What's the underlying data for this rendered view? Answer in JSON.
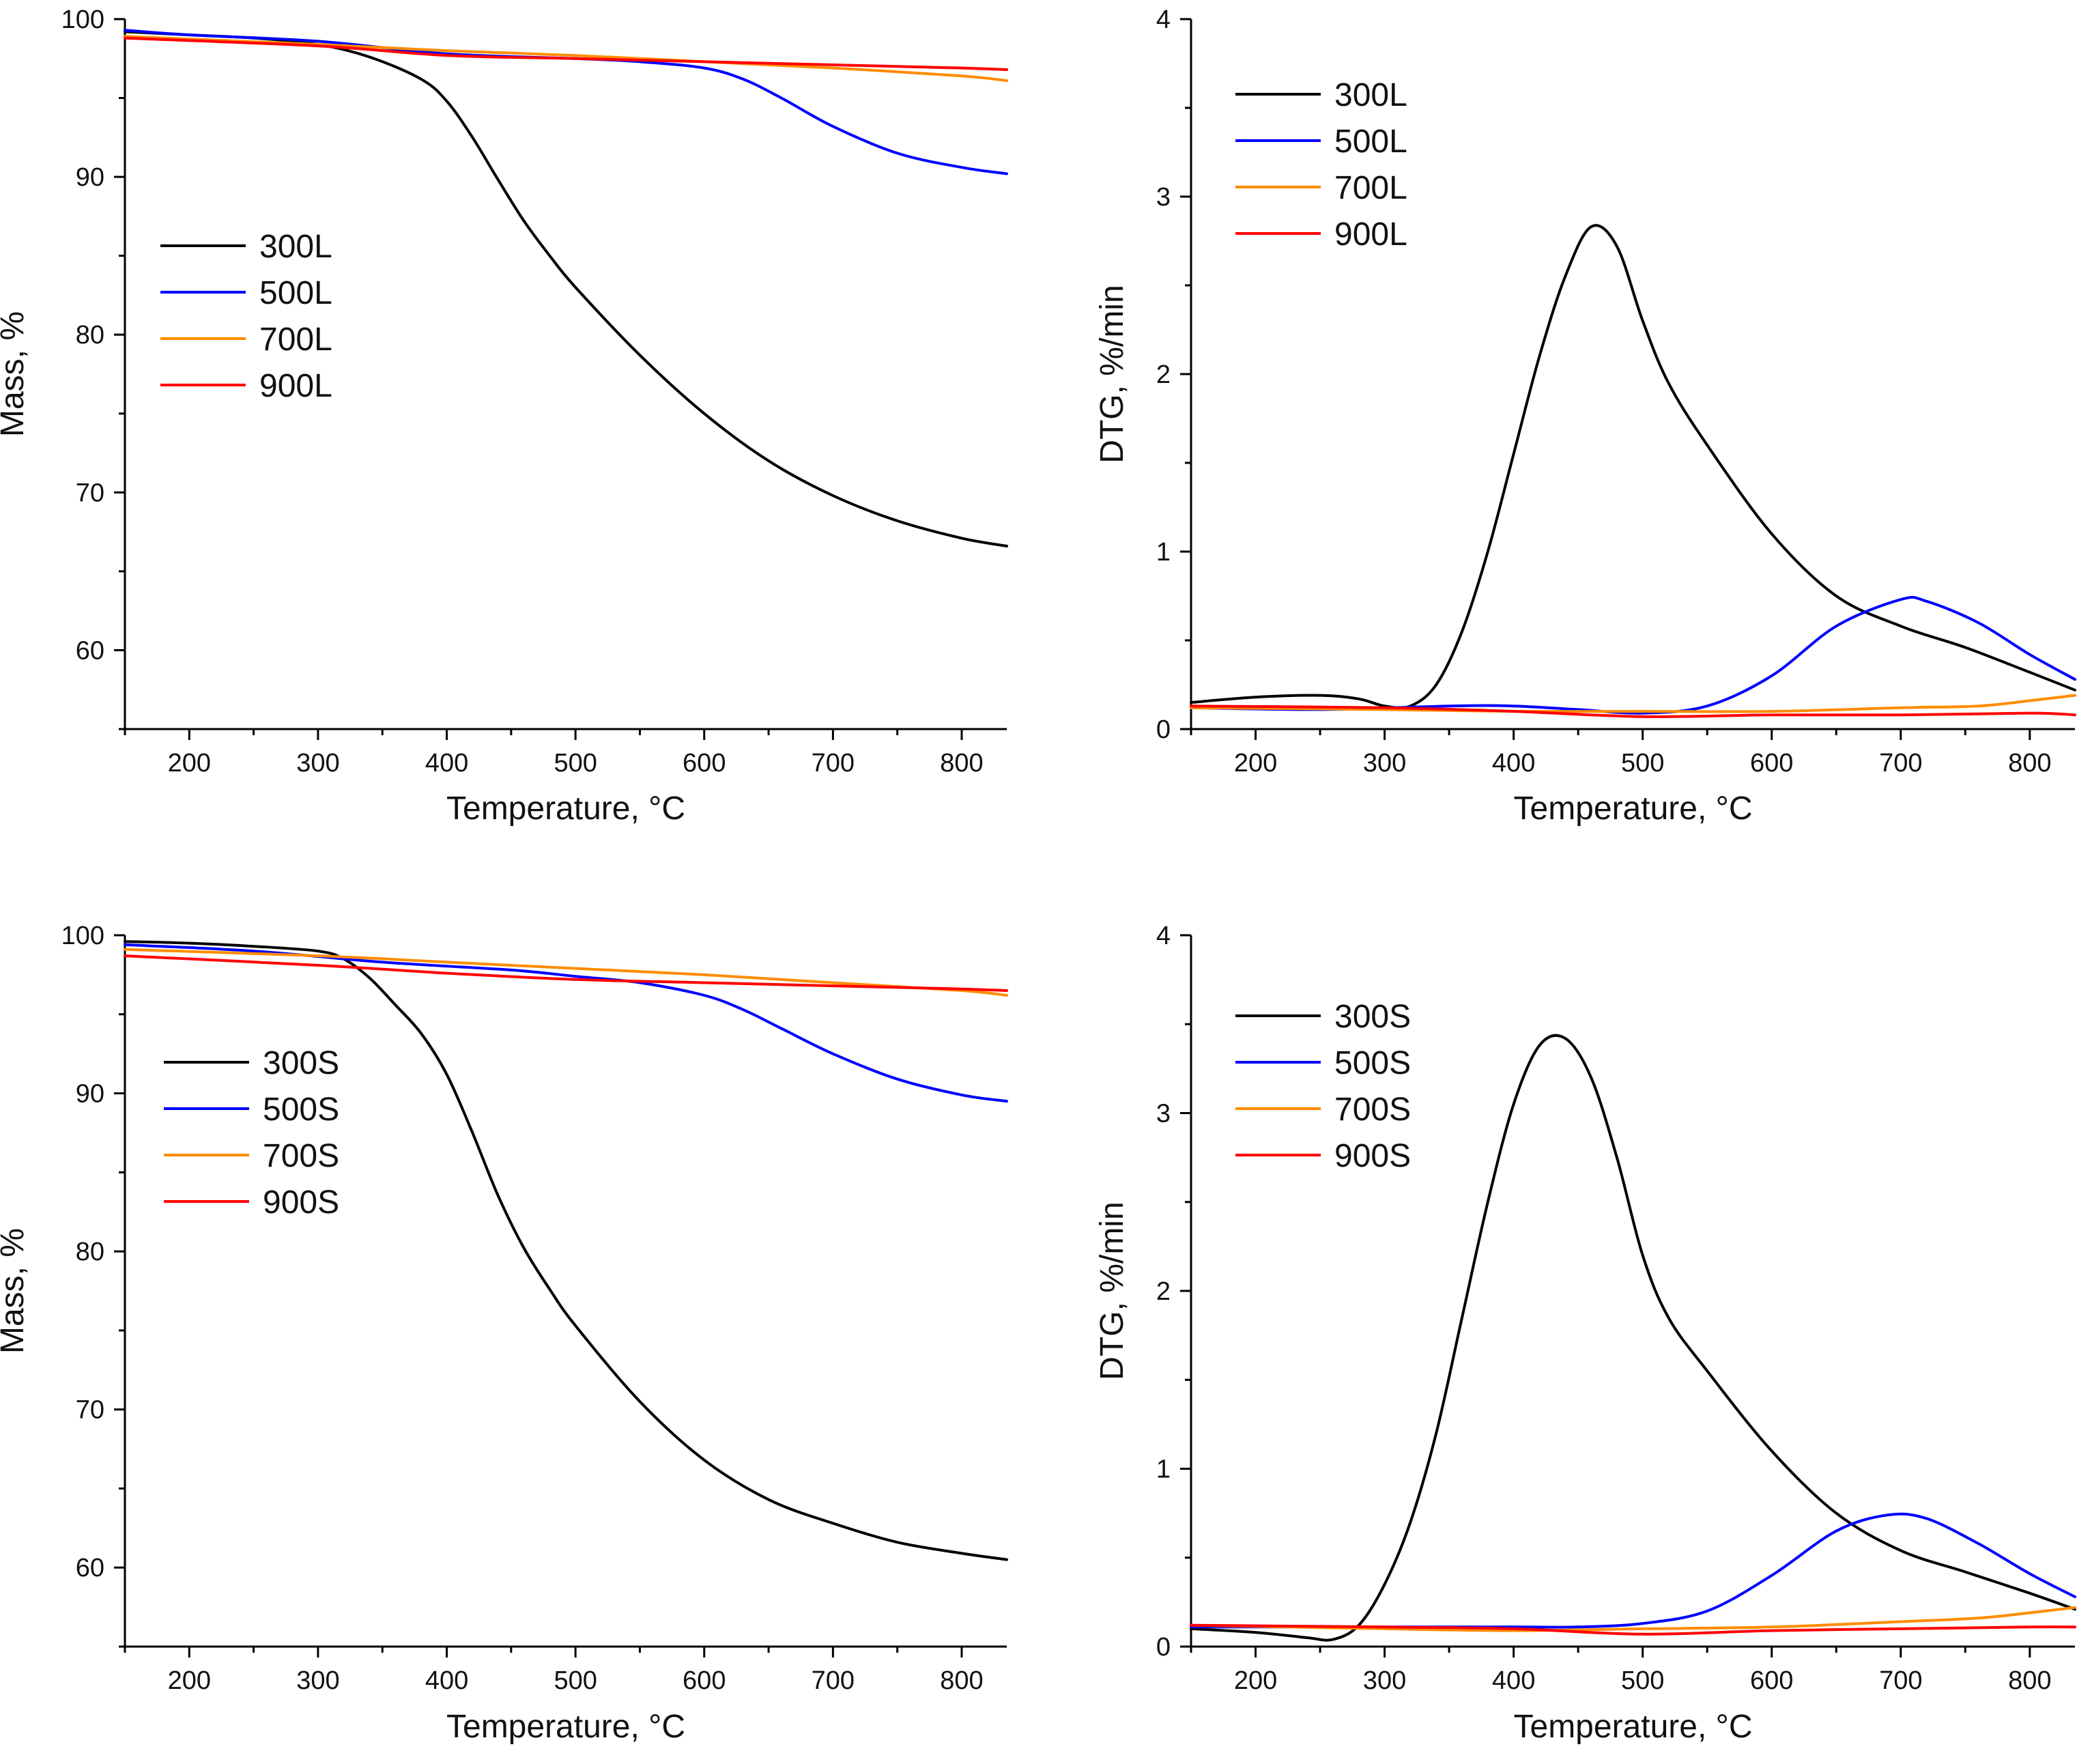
{
  "chart_data": [
    {
      "type": "line",
      "id": "tg-L",
      "xlabel": "Temperature, °C",
      "ylabel": "Mass, %",
      "xlim": [
        150,
        835
      ],
      "ylim": [
        55,
        100
      ],
      "xticks": [
        200,
        300,
        400,
        500,
        600,
        700,
        800
      ],
      "yticks": [
        60,
        70,
        80,
        90,
        100
      ],
      "legend": "upper-left",
      "series": [
        {
          "name": "300L",
          "color": "#000000",
          "x": [
            150,
            200,
            250,
            300,
            340,
            380,
            400,
            420,
            440,
            460,
            480,
            500,
            550,
            600,
            650,
            700,
            750,
            800,
            835
          ],
          "y": [
            99.2,
            99.0,
            98.8,
            98.4,
            97.6,
            96.2,
            94.8,
            92.5,
            89.8,
            87.2,
            85.0,
            83.0,
            78.7,
            75.0,
            72.0,
            69.8,
            68.2,
            67.1,
            66.6
          ]
        },
        {
          "name": "500L",
          "color": "#0000FF",
          "x": [
            150,
            200,
            300,
            400,
            500,
            550,
            600,
            630,
            660,
            700,
            750,
            800,
            835
          ],
          "y": [
            99.3,
            99.0,
            98.6,
            97.8,
            97.5,
            97.3,
            96.9,
            96.2,
            95.0,
            93.2,
            91.5,
            90.6,
            90.2
          ]
        },
        {
          "name": "700L",
          "color": "#FF8C00",
          "x": [
            150,
            300,
            400,
            500,
            600,
            700,
            800,
            835
          ],
          "y": [
            98.9,
            98.4,
            98.0,
            97.7,
            97.3,
            96.9,
            96.4,
            96.1
          ]
        },
        {
          "name": "900L",
          "color": "#FF0000",
          "x": [
            150,
            300,
            400,
            500,
            600,
            700,
            800,
            835
          ],
          "y": [
            98.8,
            98.3,
            97.7,
            97.5,
            97.3,
            97.1,
            96.9,
            96.8
          ]
        }
      ]
    },
    {
      "type": "line",
      "id": "dtg-L",
      "xlabel": "Temperature, °C",
      "ylabel": "DTG, %/min",
      "xlim": [
        150,
        835
      ],
      "ylim": [
        0,
        4
      ],
      "xticks": [
        200,
        300,
        400,
        500,
        600,
        700,
        800
      ],
      "yticks": [
        0,
        1,
        2,
        3,
        4
      ],
      "legend": "upper-left",
      "series": [
        {
          "name": "300L",
          "color": "#000000",
          "x": [
            150,
            200,
            250,
            280,
            300,
            320,
            340,
            360,
            380,
            400,
            420,
            440,
            460,
            480,
            500,
            520,
            550,
            600,
            650,
            700,
            750,
            800,
            835
          ],
          "y": [
            0.15,
            0.18,
            0.19,
            0.17,
            0.13,
            0.13,
            0.25,
            0.55,
            1.0,
            1.55,
            2.1,
            2.55,
            2.83,
            2.72,
            2.3,
            1.95,
            1.6,
            1.1,
            0.75,
            0.58,
            0.46,
            0.32,
            0.22
          ]
        },
        {
          "name": "500L",
          "color": "#0000FF",
          "x": [
            150,
            250,
            350,
            400,
            450,
            500,
            550,
            600,
            650,
            700,
            720,
            760,
            800,
            835
          ],
          "y": [
            0.12,
            0.11,
            0.13,
            0.13,
            0.11,
            0.09,
            0.13,
            0.3,
            0.58,
            0.73,
            0.72,
            0.6,
            0.42,
            0.28
          ]
        },
        {
          "name": "700L",
          "color": "#FF8C00",
          "x": [
            150,
            300,
            400,
            500,
            600,
            700,
            760,
            800,
            835
          ],
          "y": [
            0.12,
            0.11,
            0.1,
            0.1,
            0.1,
            0.12,
            0.13,
            0.16,
            0.19
          ]
        },
        {
          "name": "900L",
          "color": "#FF0000",
          "x": [
            150,
            300,
            400,
            500,
            600,
            700,
            800,
            835
          ],
          "y": [
            0.13,
            0.12,
            0.1,
            0.07,
            0.08,
            0.08,
            0.09,
            0.08
          ]
        }
      ]
    },
    {
      "type": "line",
      "id": "tg-S",
      "xlabel": "Temperature, °C",
      "ylabel": "Mass, %",
      "xlim": [
        150,
        835
      ],
      "ylim": [
        55,
        100
      ],
      "xticks": [
        200,
        300,
        400,
        500,
        600,
        700,
        800
      ],
      "yticks": [
        60,
        70,
        80,
        90,
        100
      ],
      "legend": "upper-left",
      "series": [
        {
          "name": "300S",
          "color": "#000000",
          "x": [
            150,
            200,
            250,
            300,
            320,
            340,
            360,
            380,
            400,
            420,
            440,
            460,
            480,
            500,
            550,
            600,
            650,
            700,
            750,
            800,
            835
          ],
          "y": [
            99.6,
            99.5,
            99.3,
            99.0,
            98.5,
            97.3,
            95.6,
            93.8,
            91.2,
            87.5,
            83.5,
            80.2,
            77.6,
            75.3,
            70.5,
            66.8,
            64.3,
            62.8,
            61.6,
            60.9,
            60.5
          ]
        },
        {
          "name": "500S",
          "color": "#0000FF",
          "x": [
            150,
            250,
            350,
            450,
            500,
            550,
            600,
            630,
            660,
            700,
            750,
            800,
            835
          ],
          "y": [
            99.4,
            99.0,
            98.3,
            97.8,
            97.4,
            97.0,
            96.2,
            95.3,
            94.1,
            92.5,
            90.9,
            89.9,
            89.5
          ]
        },
        {
          "name": "700S",
          "color": "#FF8C00",
          "x": [
            150,
            300,
            400,
            500,
            600,
            700,
            800,
            835
          ],
          "y": [
            99.1,
            98.7,
            98.3,
            97.9,
            97.5,
            97.0,
            96.5,
            96.2
          ]
        },
        {
          "name": "900S",
          "color": "#FF0000",
          "x": [
            150,
            300,
            400,
            500,
            600,
            700,
            800,
            835
          ],
          "y": [
            98.7,
            98.1,
            97.6,
            97.2,
            97.0,
            96.8,
            96.6,
            96.5
          ]
        }
      ]
    },
    {
      "type": "line",
      "id": "dtg-S",
      "xlabel": "Temperature, °C",
      "ylabel": "DTG, %/min",
      "xlim": [
        150,
        835
      ],
      "ylim": [
        0,
        4
      ],
      "xticks": [
        200,
        300,
        400,
        500,
        600,
        700,
        800
      ],
      "yticks": [
        0,
        1,
        2,
        3,
        4
      ],
      "legend": "upper-left",
      "series": [
        {
          "name": "300S",
          "color": "#000000",
          "x": [
            150,
            200,
            240,
            260,
            280,
            300,
            320,
            340,
            360,
            380,
            400,
            420,
            440,
            460,
            480,
            500,
            520,
            550,
            600,
            650,
            700,
            750,
            800,
            835
          ],
          "y": [
            0.1,
            0.08,
            0.05,
            0.04,
            0.12,
            0.35,
            0.7,
            1.2,
            1.85,
            2.5,
            3.05,
            3.38,
            3.42,
            3.2,
            2.75,
            2.2,
            1.85,
            1.55,
            1.1,
            0.75,
            0.54,
            0.42,
            0.3,
            0.21
          ]
        },
        {
          "name": "500S",
          "color": "#0000FF",
          "x": [
            150,
            300,
            400,
            450,
            500,
            550,
            600,
            650,
            690,
            720,
            760,
            800,
            835
          ],
          "y": [
            0.11,
            0.11,
            0.11,
            0.11,
            0.13,
            0.2,
            0.4,
            0.65,
            0.74,
            0.72,
            0.58,
            0.41,
            0.28
          ]
        },
        {
          "name": "700S",
          "color": "#FF8C00",
          "x": [
            150,
            300,
            400,
            500,
            600,
            700,
            760,
            800,
            835
          ],
          "y": [
            0.12,
            0.1,
            0.09,
            0.1,
            0.11,
            0.14,
            0.16,
            0.19,
            0.22
          ]
        },
        {
          "name": "900S",
          "color": "#FF0000",
          "x": [
            150,
            300,
            400,
            500,
            600,
            700,
            800,
            835
          ],
          "y": [
            0.12,
            0.11,
            0.1,
            0.07,
            0.09,
            0.1,
            0.11,
            0.11
          ]
        }
      ]
    }
  ]
}
